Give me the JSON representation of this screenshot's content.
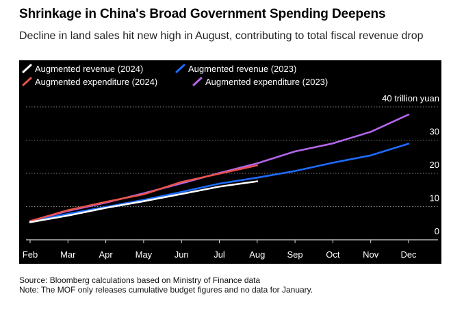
{
  "title": "Shrinkage in China's Broad Government Spending Deepens",
  "subtitle": "Decline in land sales hit new high in August, contributing to total fiscal revenue drop",
  "source": "Source: Bloomberg calculations based on Ministry of Finance data",
  "note": "Note: The MOF only releases cumulative budget figures and no data for January.",
  "chart_data": {
    "type": "line",
    "title": "Shrinkage in China's Broad Government Spending Deepens",
    "subtitle": "Decline in land sales hit new high in August, contributing to total fiscal revenue drop",
    "categories": [
      "Feb",
      "Mar",
      "Apr",
      "May",
      "Jun",
      "Jul",
      "Aug",
      "Sep",
      "Oct",
      "Nov",
      "Dec"
    ],
    "ylim": [
      0,
      40
    ],
    "yticks": [
      0,
      10,
      20,
      30,
      40
    ],
    "ytick_labels": [
      "0",
      "10",
      "20",
      "30",
      "40 trillion yuan"
    ],
    "grid": true,
    "legend_position": "top-left",
    "series": [
      {
        "name": "Augmented revenue (2024)",
        "color": "#ffffff",
        "values": [
          5.3,
          7.3,
          9.6,
          11.6,
          13.8,
          16.0,
          17.6,
          null,
          null,
          null,
          null
        ]
      },
      {
        "name": "Augmented revenue (2023)",
        "color": "#1f6bff",
        "values": [
          5.5,
          7.8,
          9.9,
          12.0,
          14.4,
          16.9,
          18.7,
          20.7,
          23.2,
          25.4,
          28.9
        ]
      },
      {
        "name": "Augmented expenditure (2024)",
        "color": "#e8524a",
        "values": [
          5.6,
          8.9,
          11.4,
          13.7,
          17.4,
          19.9,
          22.4,
          null,
          null,
          null,
          null
        ]
      },
      {
        "name": "Augmented expenditure (2023)",
        "color": "#b266e8",
        "values": [
          5.6,
          8.7,
          11.2,
          14.0,
          17.0,
          20.1,
          23.0,
          26.6,
          29.0,
          32.5,
          37.7
        ]
      }
    ]
  }
}
